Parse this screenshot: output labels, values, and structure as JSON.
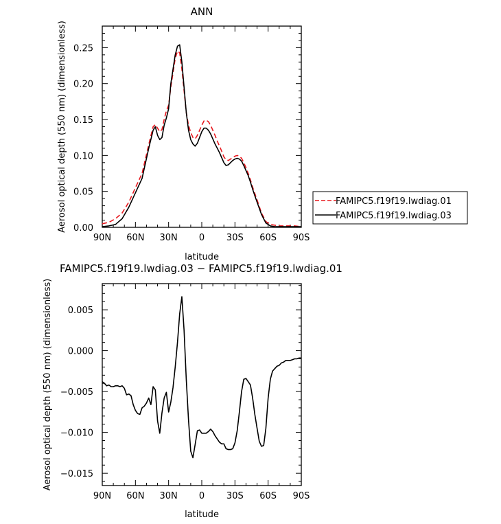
{
  "chart_data": [
    {
      "type": "line",
      "title": "ANN",
      "xlabel": "latitude",
      "ylabel": "Aerosol optical depth (550 nm) (dimensionless)",
      "xlim": [
        90,
        -90
      ],
      "ylim": [
        0,
        0.28
      ],
      "x_ticks": [
        90,
        60,
        30,
        0,
        -30,
        -60,
        -90
      ],
      "x_tick_labels": [
        "90N",
        "60N",
        "30N",
        "0",
        "30S",
        "60S",
        "90S"
      ],
      "y_ticks": [
        0,
        0.05,
        0.1,
        0.15,
        0.2,
        0.25
      ],
      "y_tick_labels": [
        "0.00",
        "0.05",
        "0.10",
        "0.15",
        "0.20",
        "0.25"
      ],
      "legend_position": "right",
      "series": [
        {
          "name": "FAMIPC5.f19f19.lwdiag.01",
          "color": "#e8191f",
          "dash": "dashed",
          "x": [
            90,
            84,
            78,
            72,
            66,
            60,
            54,
            48,
            44,
            42,
            40,
            38,
            36,
            34,
            32,
            30,
            28,
            26,
            24,
            22,
            20,
            18,
            16,
            14,
            12,
            10,
            8,
            6,
            4,
            2,
            0,
            -2,
            -4,
            -6,
            -8,
            -10,
            -12,
            -14,
            -16,
            -18,
            -20,
            -22,
            -24,
            -26,
            -28,
            -30,
            -32,
            -34,
            -36,
            -38,
            -40,
            -42,
            -44,
            -46,
            -48,
            -50,
            -54,
            -58,
            -62,
            -66,
            -70,
            -74,
            -78,
            -84,
            -90
          ],
          "y": [
            0.005,
            0.007,
            0.012,
            0.02,
            0.035,
            0.055,
            0.075,
            0.115,
            0.14,
            0.143,
            0.138,
            0.133,
            0.136,
            0.15,
            0.162,
            0.17,
            0.195,
            0.215,
            0.235,
            0.245,
            0.243,
            0.22,
            0.19,
            0.16,
            0.142,
            0.132,
            0.125,
            0.123,
            0.128,
            0.135,
            0.142,
            0.148,
            0.149,
            0.147,
            0.142,
            0.135,
            0.128,
            0.12,
            0.113,
            0.106,
            0.098,
            0.094,
            0.093,
            0.095,
            0.097,
            0.099,
            0.1,
            0.099,
            0.096,
            0.09,
            0.083,
            0.075,
            0.066,
            0.056,
            0.047,
            0.038,
            0.02,
            0.008,
            0.004,
            0.003,
            0.002,
            0.002,
            0.002,
            0.002,
            0.001
          ]
        },
        {
          "name": "FAMIPC5.f19f19.lwdiag.03",
          "color": "#000000",
          "dash": "solid",
          "x": [
            90,
            84,
            78,
            72,
            66,
            60,
            54,
            48,
            44,
            42,
            40,
            38,
            36,
            34,
            32,
            30,
            28,
            26,
            24,
            22,
            20,
            18,
            16,
            14,
            12,
            10,
            8,
            6,
            4,
            2,
            0,
            -2,
            -4,
            -6,
            -8,
            -10,
            -12,
            -14,
            -16,
            -18,
            -20,
            -22,
            -24,
            -26,
            -28,
            -30,
            -32,
            -34,
            -36,
            -38,
            -40,
            -42,
            -44,
            -46,
            -48,
            -50,
            -54,
            -58,
            -62,
            -66,
            -70,
            -74,
            -78,
            -84,
            -90
          ],
          "y": [
            0.001,
            0.002,
            0.004,
            0.012,
            0.028,
            0.048,
            0.068,
            0.11,
            0.135,
            0.14,
            0.128,
            0.122,
            0.125,
            0.142,
            0.152,
            0.165,
            0.2,
            0.22,
            0.24,
            0.252,
            0.254,
            0.23,
            0.195,
            0.16,
            0.135,
            0.122,
            0.116,
            0.113,
            0.117,
            0.125,
            0.133,
            0.138,
            0.138,
            0.135,
            0.13,
            0.123,
            0.116,
            0.11,
            0.104,
            0.097,
            0.09,
            0.086,
            0.087,
            0.09,
            0.093,
            0.095,
            0.096,
            0.095,
            0.092,
            0.086,
            0.079,
            0.072,
            0.063,
            0.053,
            0.044,
            0.035,
            0.018,
            0.006,
            0.002,
            0.001,
            0.001,
            0.001,
            0.001,
            0.001,
            0.001
          ]
        }
      ]
    },
    {
      "type": "line",
      "title": "FAMIPC5.f19f19.lwdiag.03 − FAMIPC5.f19f19.lwdiag.01",
      "xlabel": "latitude",
      "ylabel": "Aerosol optical depth (550 nm) (dimensionless)",
      "xlim": [
        90,
        -90
      ],
      "ylim": [
        -0.0165,
        0.0082
      ],
      "x_ticks": [
        90,
        60,
        30,
        0,
        -30,
        -60,
        -90
      ],
      "x_tick_labels": [
        "90N",
        "60N",
        "30N",
        "0",
        "30S",
        "60S",
        "90S"
      ],
      "y_ticks": [
        -0.015,
        -0.01,
        -0.005,
        0.0,
        0.005
      ],
      "y_tick_labels": [
        "−0.015",
        "−0.010",
        "−0.005",
        "0.000",
        "0.005"
      ],
      "series": [
        {
          "color": "#000000",
          "dash": "solid",
          "x": [
            90,
            88,
            86,
            84,
            82,
            80,
            78,
            76,
            74,
            72,
            70,
            68,
            66,
            64,
            62,
            60,
            58,
            56,
            54,
            52,
            50,
            48,
            46,
            44,
            42,
            40,
            38,
            36,
            34,
            32,
            30,
            28,
            26,
            24,
            22,
            20,
            18,
            16,
            14,
            12,
            10,
            8,
            6,
            4,
            2,
            0,
            -2,
            -4,
            -6,
            -8,
            -10,
            -12,
            -14,
            -16,
            -18,
            -20,
            -22,
            -24,
            -26,
            -28,
            -30,
            -32,
            -34,
            -36,
            -38,
            -40,
            -42,
            -44,
            -46,
            -48,
            -50,
            -52,
            -54,
            -56,
            -58,
            -60,
            -62,
            -64,
            -66,
            -68,
            -70,
            -72,
            -74,
            -76,
            -78,
            -80,
            -82,
            -84,
            -86,
            -88,
            -90
          ],
          "y": [
            -0.0038,
            -0.004,
            -0.0043,
            -0.0042,
            -0.0044,
            -0.0044,
            -0.0043,
            -0.0043,
            -0.0044,
            -0.0043,
            -0.0046,
            -0.0054,
            -0.0053,
            -0.0055,
            -0.0066,
            -0.0073,
            -0.0077,
            -0.0078,
            -0.007,
            -0.0068,
            -0.0064,
            -0.0058,
            -0.0066,
            -0.0044,
            -0.0048,
            -0.0086,
            -0.0101,
            -0.0076,
            -0.0058,
            -0.0051,
            -0.0075,
            -0.0063,
            -0.0045,
            -0.002,
            0.001,
            0.0045,
            0.0066,
            0.0025,
            -0.0035,
            -0.0085,
            -0.0123,
            -0.0131,
            -0.0115,
            -0.0098,
            -0.0097,
            -0.0101,
            -0.0101,
            -0.0101,
            -0.0099,
            -0.0096,
            -0.0099,
            -0.0104,
            -0.0108,
            -0.0112,
            -0.0114,
            -0.0114,
            -0.012,
            -0.0121,
            -0.0121,
            -0.012,
            -0.0113,
            -0.0098,
            -0.0075,
            -0.005,
            -0.0035,
            -0.0034,
            -0.0038,
            -0.0042,
            -0.0058,
            -0.0078,
            -0.0095,
            -0.0111,
            -0.0117,
            -0.0116,
            -0.0095,
            -0.0058,
            -0.0035,
            -0.0025,
            -0.0022,
            -0.0019,
            -0.0018,
            -0.0015,
            -0.0014,
            -0.0012,
            -0.0012,
            -0.0012,
            -0.0011,
            -0.001,
            -0.001,
            -0.0009,
            -0.0009
          ]
        }
      ]
    }
  ]
}
